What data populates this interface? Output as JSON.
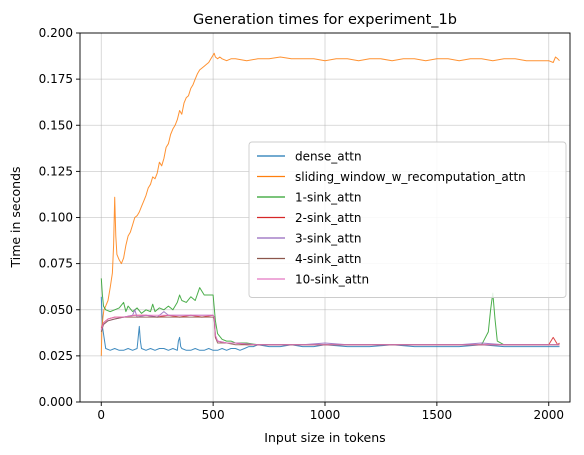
{
  "chart_data": {
    "type": "line",
    "title": "Generation times for experiment_1b",
    "xlabel": "Input size in tokens",
    "ylabel": "Time in seconds",
    "xlim": [
      -95,
      2095
    ],
    "ylim": [
      0.0,
      0.2
    ],
    "xticks": [
      0,
      500,
      1000,
      1500,
      2000
    ],
    "xtick_labels": [
      "0",
      "500",
      "1000",
      "1500",
      "2000"
    ],
    "yticks": [
      0.0,
      0.025,
      0.05,
      0.075,
      0.1,
      0.125,
      0.15,
      0.175,
      0.2
    ],
    "ytick_labels": [
      "0.000",
      "0.025",
      "0.050",
      "0.075",
      "0.100",
      "0.125",
      "0.150",
      "0.175",
      "0.200"
    ],
    "grid": true,
    "legend_position": "center-right",
    "series": [
      {
        "name": "dense_attn",
        "color": "#1f77b4",
        "x": [
          0,
          5,
          20,
          40,
          60,
          80,
          100,
          120,
          140,
          160,
          165,
          170,
          175,
          180,
          200,
          220,
          240,
          260,
          280,
          300,
          320,
          340,
          345,
          350,
          355,
          360,
          380,
          400,
          420,
          440,
          460,
          480,
          500,
          520,
          540,
          560,
          580,
          600,
          620,
          640,
          660,
          680,
          700,
          750,
          800,
          850,
          900,
          950,
          1000,
          1100,
          1200,
          1300,
          1400,
          1500,
          1600,
          1700,
          1800,
          1900,
          2000,
          2048
        ],
        "y": [
          0.057,
          0.041,
          0.029,
          0.028,
          0.029,
          0.028,
          0.028,
          0.029,
          0.028,
          0.029,
          0.035,
          0.041,
          0.033,
          0.029,
          0.028,
          0.029,
          0.028,
          0.029,
          0.029,
          0.028,
          0.029,
          0.028,
          0.033,
          0.035,
          0.03,
          0.029,
          0.028,
          0.028,
          0.029,
          0.028,
          0.028,
          0.029,
          0.028,
          0.028,
          0.029,
          0.028,
          0.029,
          0.029,
          0.028,
          0.029,
          0.03,
          0.03,
          0.031,
          0.03,
          0.03,
          0.031,
          0.03,
          0.03,
          0.031,
          0.03,
          0.03,
          0.031,
          0.03,
          0.03,
          0.03,
          0.031,
          0.03,
          0.03,
          0.03,
          0.03
        ]
      },
      {
        "name": "sliding_window_w_recomputation_attn",
        "color": "#ff7f0e",
        "x": [
          0,
          3,
          8,
          12,
          20,
          30,
          40,
          50,
          55,
          60,
          65,
          70,
          80,
          90,
          100,
          110,
          120,
          130,
          140,
          150,
          160,
          170,
          180,
          190,
          200,
          210,
          220,
          230,
          240,
          250,
          260,
          270,
          280,
          290,
          300,
          310,
          320,
          330,
          340,
          350,
          360,
          370,
          380,
          390,
          400,
          410,
          420,
          430,
          440,
          450,
          460,
          470,
          480,
          490,
          500,
          505,
          510,
          520,
          530,
          540,
          560,
          580,
          600,
          650,
          700,
          750,
          800,
          850,
          900,
          950,
          1000,
          1050,
          1100,
          1150,
          1200,
          1250,
          1300,
          1350,
          1400,
          1450,
          1500,
          1550,
          1600,
          1650,
          1700,
          1750,
          1800,
          1850,
          1900,
          1950,
          2000,
          2020,
          2030,
          2040,
          2048
        ],
        "y": [
          0.025,
          0.04,
          0.046,
          0.05,
          0.052,
          0.055,
          0.062,
          0.07,
          0.085,
          0.111,
          0.09,
          0.08,
          0.077,
          0.075,
          0.078,
          0.085,
          0.09,
          0.092,
          0.096,
          0.1,
          0.101,
          0.103,
          0.106,
          0.109,
          0.112,
          0.116,
          0.118,
          0.122,
          0.121,
          0.124,
          0.13,
          0.128,
          0.132,
          0.138,
          0.14,
          0.145,
          0.148,
          0.15,
          0.153,
          0.158,
          0.156,
          0.162,
          0.165,
          0.166,
          0.17,
          0.172,
          0.175,
          0.178,
          0.18,
          0.181,
          0.182,
          0.183,
          0.184,
          0.186,
          0.188,
          0.189,
          0.187,
          0.186,
          0.187,
          0.186,
          0.185,
          0.186,
          0.186,
          0.185,
          0.186,
          0.186,
          0.187,
          0.186,
          0.186,
          0.186,
          0.185,
          0.186,
          0.186,
          0.185,
          0.186,
          0.186,
          0.185,
          0.186,
          0.186,
          0.185,
          0.186,
          0.186,
          0.185,
          0.186,
          0.186,
          0.185,
          0.186,
          0.186,
          0.185,
          0.185,
          0.185,
          0.184,
          0.187,
          0.186,
          0.185
        ]
      },
      {
        "name": "1-sink_attn",
        "color": "#2ca02c",
        "x": [
          0,
          5,
          10,
          20,
          40,
          60,
          80,
          100,
          110,
          120,
          140,
          160,
          180,
          200,
          220,
          230,
          240,
          260,
          280,
          300,
          320,
          340,
          350,
          360,
          380,
          400,
          420,
          440,
          460,
          480,
          500,
          510,
          520,
          540,
          560,
          580,
          600,
          650,
          700,
          800,
          900,
          1000,
          1100,
          1200,
          1300,
          1400,
          1500,
          1600,
          1700,
          1730,
          1740,
          1750,
          1760,
          1770,
          1800,
          1900,
          2000,
          2048
        ],
        "y": [
          0.067,
          0.058,
          0.052,
          0.05,
          0.049,
          0.05,
          0.051,
          0.054,
          0.049,
          0.052,
          0.049,
          0.051,
          0.048,
          0.05,
          0.049,
          0.053,
          0.049,
          0.051,
          0.05,
          0.052,
          0.05,
          0.054,
          0.058,
          0.055,
          0.054,
          0.057,
          0.055,
          0.062,
          0.058,
          0.058,
          0.058,
          0.044,
          0.037,
          0.034,
          0.033,
          0.033,
          0.032,
          0.032,
          0.031,
          0.031,
          0.031,
          0.031,
          0.031,
          0.031,
          0.031,
          0.031,
          0.031,
          0.031,
          0.031,
          0.038,
          0.05,
          0.059,
          0.045,
          0.033,
          0.031,
          0.031,
          0.031,
          0.031
        ]
      },
      {
        "name": "2-sink_attn",
        "color": "#d62728",
        "x": [
          0,
          10,
          30,
          60,
          100,
          150,
          200,
          250,
          300,
          350,
          400,
          450,
          500,
          505,
          510,
          520,
          560,
          600,
          650,
          700,
          800,
          900,
          1000,
          1100,
          1200,
          1300,
          1400,
          1500,
          1600,
          1700,
          1800,
          1900,
          2000,
          2020,
          2040,
          2048
        ],
        "y": [
          0.04,
          0.043,
          0.045,
          0.046,
          0.046,
          0.047,
          0.047,
          0.046,
          0.047,
          0.046,
          0.047,
          0.046,
          0.047,
          0.046,
          0.035,
          0.033,
          0.032,
          0.032,
          0.031,
          0.031,
          0.031,
          0.031,
          0.031,
          0.031,
          0.031,
          0.031,
          0.031,
          0.031,
          0.031,
          0.031,
          0.031,
          0.031,
          0.031,
          0.035,
          0.031,
          0.032
        ]
      },
      {
        "name": "3-sink_attn",
        "color": "#9467bd",
        "x": [
          0,
          10,
          30,
          60,
          100,
          140,
          150,
          160,
          200,
          250,
          280,
          300,
          350,
          400,
          450,
          500,
          505,
          510,
          520,
          560,
          600,
          700,
          800,
          900,
          1000,
          1100,
          1200,
          1300,
          1400,
          1500,
          1600,
          1700,
          1800,
          1900,
          2000,
          2048
        ],
        "y": [
          0.039,
          0.042,
          0.044,
          0.045,
          0.046,
          0.047,
          0.05,
          0.046,
          0.047,
          0.046,
          0.049,
          0.047,
          0.047,
          0.047,
          0.047,
          0.047,
          0.046,
          0.036,
          0.033,
          0.032,
          0.032,
          0.031,
          0.031,
          0.031,
          0.032,
          0.031,
          0.031,
          0.031,
          0.031,
          0.031,
          0.031,
          0.032,
          0.031,
          0.031,
          0.031,
          0.031
        ]
      },
      {
        "name": "4-sink_attn",
        "color": "#8c564b",
        "x": [
          0,
          10,
          30,
          60,
          100,
          150,
          200,
          250,
          300,
          350,
          400,
          450,
          500,
          505,
          510,
          520,
          560,
          600,
          700,
          800,
          900,
          1000,
          1100,
          1200,
          1300,
          1400,
          1500,
          1600,
          1700,
          1800,
          1900,
          2000,
          2048
        ],
        "y": [
          0.038,
          0.042,
          0.044,
          0.045,
          0.046,
          0.046,
          0.046,
          0.046,
          0.046,
          0.046,
          0.046,
          0.046,
          0.046,
          0.045,
          0.035,
          0.032,
          0.032,
          0.031,
          0.031,
          0.031,
          0.031,
          0.031,
          0.031,
          0.031,
          0.031,
          0.031,
          0.031,
          0.031,
          0.031,
          0.031,
          0.031,
          0.031,
          0.031
        ]
      },
      {
        "name": "10-sink_attn",
        "color": "#e377c2",
        "x": [
          0,
          10,
          30,
          60,
          100,
          150,
          200,
          250,
          300,
          350,
          400,
          450,
          500,
          505,
          510,
          520,
          560,
          600,
          700,
          800,
          900,
          1000,
          1100,
          1200,
          1300,
          1400,
          1500,
          1600,
          1700,
          1800,
          1900,
          2000,
          2048
        ],
        "y": [
          0.039,
          0.043,
          0.045,
          0.046,
          0.046,
          0.047,
          0.047,
          0.047,
          0.047,
          0.047,
          0.047,
          0.047,
          0.047,
          0.046,
          0.036,
          0.033,
          0.032,
          0.032,
          0.031,
          0.031,
          0.031,
          0.031,
          0.031,
          0.031,
          0.031,
          0.031,
          0.031,
          0.031,
          0.031,
          0.031,
          0.031,
          0.031,
          0.031
        ]
      }
    ]
  }
}
